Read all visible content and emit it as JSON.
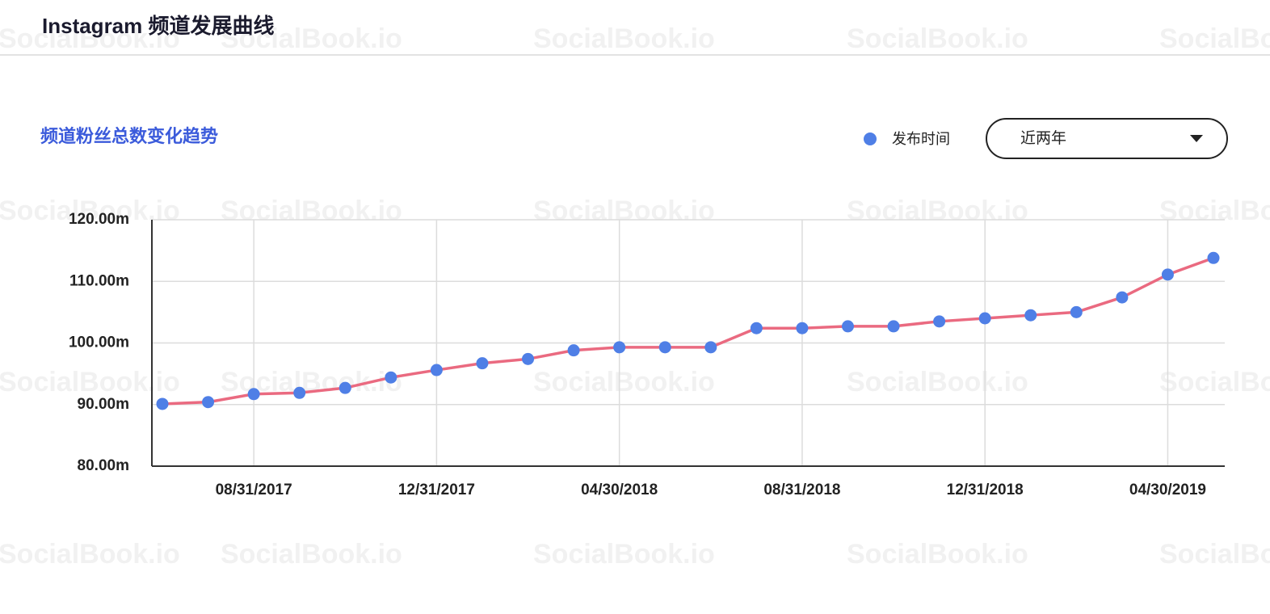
{
  "header": {
    "title": "Instagram 频道发展曲线"
  },
  "watermark": "SocialBook.io",
  "chart_data": {
    "type": "line",
    "title": "频道粉丝总数变化趋势",
    "legend_label": "发布时间",
    "range_select": "近两年",
    "categories": [
      null,
      null,
      "08/31/2017",
      null,
      null,
      null,
      "12/31/2017",
      null,
      null,
      null,
      "04/30/2018",
      null,
      null,
      null,
      "08/31/2018",
      null,
      null,
      null,
      "12/31/2018",
      null,
      null,
      null,
      "04/30/2019",
      null
    ],
    "series": [
      {
        "name": "发布时间",
        "color": "#4f7fe6",
        "line_color": "#ea6a80",
        "values": [
          90.1,
          90.4,
          91.7,
          91.9,
          92.7,
          94.4,
          95.6,
          96.7,
          97.4,
          98.8,
          99.3,
          99.3,
          99.3,
          102.4,
          102.4,
          102.7,
          102.7,
          103.5,
          104.0,
          104.5,
          105.0,
          107.4,
          111.1,
          113.8
        ]
      }
    ],
    "ylim": [
      80,
      120
    ],
    "yticks": [
      {
        "value": 80,
        "label": "80.00m"
      },
      {
        "value": 90,
        "label": "90.00m"
      },
      {
        "value": 100,
        "label": "100.00m"
      },
      {
        "value": 110,
        "label": "110.00m"
      },
      {
        "value": 120,
        "label": "120.00m"
      }
    ],
    "grid": true
  }
}
